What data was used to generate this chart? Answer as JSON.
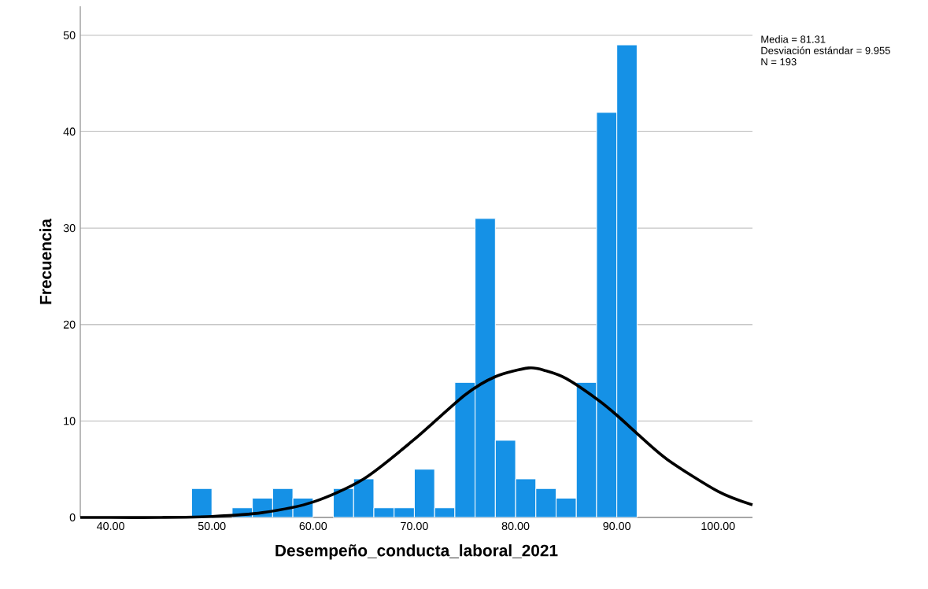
{
  "chart_data": {
    "type": "histogram",
    "xlabel": "Desempeño_conducta_laboral_2021",
    "ylabel": "Frecuencia",
    "annotations": [
      "Media = 81.31",
      "Desviación estándar = 9.955",
      "N = 193"
    ],
    "bins": [
      48,
      50,
      52,
      54,
      56,
      58,
      60,
      62,
      64,
      66,
      68,
      70,
      72,
      74,
      76,
      78,
      80,
      82,
      84,
      86,
      88,
      90,
      92
    ],
    "values": [
      3,
      0,
      1,
      2,
      3,
      2,
      0,
      3,
      4,
      1,
      1,
      5,
      1,
      14,
      31,
      8,
      4,
      3,
      2,
      14,
      42,
      49
    ],
    "color": "#1591e6",
    "series": [
      {
        "type": "line",
        "color": "#000000",
        "x": [
          37,
          40,
          45,
          50,
          55,
          60,
          65,
          70,
          75,
          78,
          81.3,
          83,
          85,
          88,
          90,
          92,
          95,
          100,
          103.4
        ],
        "values": [
          0,
          0,
          0,
          0.1,
          0.5,
          1.6,
          4,
          8.1,
          12.7,
          14.6,
          15.5,
          15.2,
          14.4,
          12.3,
          10.6,
          8.7,
          6,
          2.7,
          1.3
        ]
      }
    ],
    "xlim": [
      37,
      103.4
    ],
    "ylim": [
      0,
      53
    ],
    "xticks": [
      {
        "value": 40,
        "label": "40.00"
      },
      {
        "value": 50,
        "label": "50.00"
      },
      {
        "value": 60,
        "label": "60.00"
      },
      {
        "value": 70,
        "label": "70.00"
      },
      {
        "value": 80,
        "label": "80.00"
      },
      {
        "value": 90,
        "label": "90.00"
      },
      {
        "value": 100,
        "label": "100.00"
      }
    ],
    "yticks": [
      0,
      10,
      20,
      30,
      40,
      50
    ],
    "grid": "y"
  }
}
